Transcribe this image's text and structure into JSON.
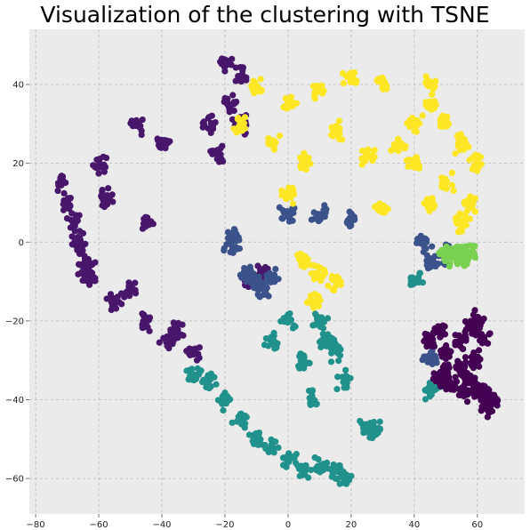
{
  "chart_data": {
    "type": "scatter",
    "title": "Visualization of the clustering with TSNE",
    "xlabel": "",
    "ylabel": "",
    "xlim": [
      -82,
      75
    ],
    "ylim": [
      -69,
      54
    ],
    "xticks": [
      -80,
      -60,
      -40,
      -20,
      0,
      20,
      40,
      60
    ],
    "yticks": [
      -60,
      -40,
      -20,
      0,
      20,
      40
    ],
    "xtick_labels": [
      "−80",
      "−60",
      "−40",
      "−20",
      "0",
      "20",
      "40",
      "60"
    ],
    "ytick_labels": [
      "−60",
      "−40",
      "−20",
      "0",
      "20",
      "40"
    ],
    "grid": true,
    "background": "#ebebeb",
    "marker": "filled circle",
    "clusters": [
      {
        "color": "#48176b",
        "approx_points": [
          [
            -72,
            15
          ],
          [
            -70,
            10
          ],
          [
            -68,
            5
          ],
          [
            -66,
            0
          ],
          [
            -64,
            -5
          ],
          [
            -62,
            -10
          ],
          [
            -60,
            20
          ],
          [
            -58,
            12
          ],
          [
            -55,
            -15
          ],
          [
            -50,
            -12
          ],
          [
            -48,
            30
          ],
          [
            -45,
            -20
          ],
          [
            -40,
            25
          ],
          [
            -38,
            -25
          ],
          [
            -35,
            -22
          ],
          [
            -30,
            -28
          ],
          [
            -25,
            30
          ],
          [
            -22,
            22
          ],
          [
            -18,
            35
          ],
          [
            -15,
            30
          ],
          [
            -12,
            -10
          ],
          [
            -8,
            -8
          ],
          [
            -20,
            45
          ],
          [
            -15,
            42
          ],
          [
            -45,
            5
          ],
          [
            -65,
            -8
          ]
        ]
      },
      {
        "color": "#3b528b",
        "approx_points": [
          [
            -10,
            -10
          ],
          [
            -8,
            -12
          ],
          [
            -13,
            -8
          ],
          [
            -5,
            -9
          ],
          [
            -17,
            1
          ],
          [
            0,
            7
          ],
          [
            10,
            7
          ],
          [
            20,
            5
          ],
          [
            43,
            0
          ],
          [
            46,
            -5
          ],
          [
            50,
            -3
          ],
          [
            45,
            -29
          ],
          [
            -18,
            -1
          ]
        ]
      },
      {
        "color": "#21918c",
        "approx_points": [
          [
            -25,
            -35
          ],
          [
            -20,
            -40
          ],
          [
            -15,
            -45
          ],
          [
            -10,
            -50
          ],
          [
            -5,
            -52
          ],
          [
            0,
            -55
          ],
          [
            5,
            -58
          ],
          [
            10,
            -57
          ],
          [
            15,
            -58
          ],
          [
            18,
            -60
          ],
          [
            28,
            -48
          ],
          [
            25,
            -47
          ],
          [
            5,
            -30
          ],
          [
            10,
            -20
          ],
          [
            15,
            -28
          ],
          [
            12,
            -25
          ],
          [
            18,
            -35
          ],
          [
            8,
            -40
          ],
          [
            0,
            -20
          ],
          [
            -5,
            -25
          ],
          [
            45,
            -38
          ],
          [
            48,
            -35
          ],
          [
            -30,
            -33
          ],
          [
            40,
            -9
          ]
        ]
      },
      {
        "color": "#fde725",
        "approx_points": [
          [
            -10,
            40
          ],
          [
            0,
            35
          ],
          [
            10,
            38
          ],
          [
            20,
            42
          ],
          [
            30,
            40
          ],
          [
            -5,
            25
          ],
          [
            5,
            20
          ],
          [
            15,
            28
          ],
          [
            25,
            22
          ],
          [
            35,
            25
          ],
          [
            40,
            30
          ],
          [
            45,
            35
          ],
          [
            50,
            30
          ],
          [
            55,
            25
          ],
          [
            60,
            20
          ],
          [
            58,
            10
          ],
          [
            55,
            5
          ],
          [
            45,
            10
          ],
          [
            30,
            8
          ],
          [
            0,
            12
          ],
          [
            5,
            -5
          ],
          [
            10,
            -8
          ],
          [
            15,
            -10
          ],
          [
            8,
            -15
          ],
          [
            -15,
            30
          ],
          [
            50,
            15
          ],
          [
            45,
            40
          ],
          [
            40,
            20
          ]
        ]
      },
      {
        "color": "#440154",
        "approx_points": [
          [
            45,
            -25
          ],
          [
            48,
            -22
          ],
          [
            50,
            -28
          ],
          [
            55,
            -25
          ],
          [
            58,
            -22
          ],
          [
            60,
            -20
          ],
          [
            62,
            -25
          ],
          [
            60,
            -30
          ],
          [
            55,
            -32
          ],
          [
            50,
            -33
          ],
          [
            48,
            -35
          ],
          [
            52,
            -36
          ],
          [
            58,
            -35
          ],
          [
            62,
            -38
          ],
          [
            65,
            -40
          ],
          [
            63,
            -42
          ],
          [
            60,
            -38
          ],
          [
            56,
            -38
          ]
        ]
      },
      {
        "color": "#7ad151",
        "approx_points": [
          [
            50,
            -3
          ],
          [
            52,
            -2
          ],
          [
            55,
            -3
          ],
          [
            57,
            -2
          ],
          [
            53,
            -4
          ],
          [
            56,
            -4
          ]
        ]
      }
    ]
  }
}
